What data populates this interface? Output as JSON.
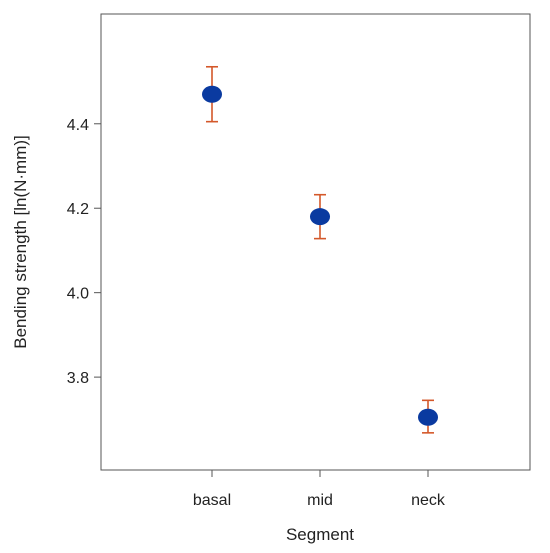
{
  "chart_data": {
    "type": "scatter",
    "title": "",
    "xlabel": "Segment",
    "ylabel": "Bending strength [ln(N·mm)]",
    "categories": [
      "basal",
      "mid",
      "neck"
    ],
    "series": [
      {
        "values": [
          4.47,
          4.18,
          3.705
        ],
        "error_low": [
          4.405,
          4.128,
          3.668
        ],
        "error_high": [
          4.535,
          4.232,
          3.745
        ]
      }
    ],
    "yticks": [
      3.8,
      4.0,
      4.2,
      4.4
    ],
    "ytick_labels": [
      "3.8",
      "4.0",
      "4.2",
      "4.4"
    ],
    "ylim": [
      3.58,
      4.66
    ],
    "grid": false,
    "colors": {
      "point": "#0a3aa0",
      "errorbar": "#d4582a",
      "axis": "#555555"
    }
  }
}
